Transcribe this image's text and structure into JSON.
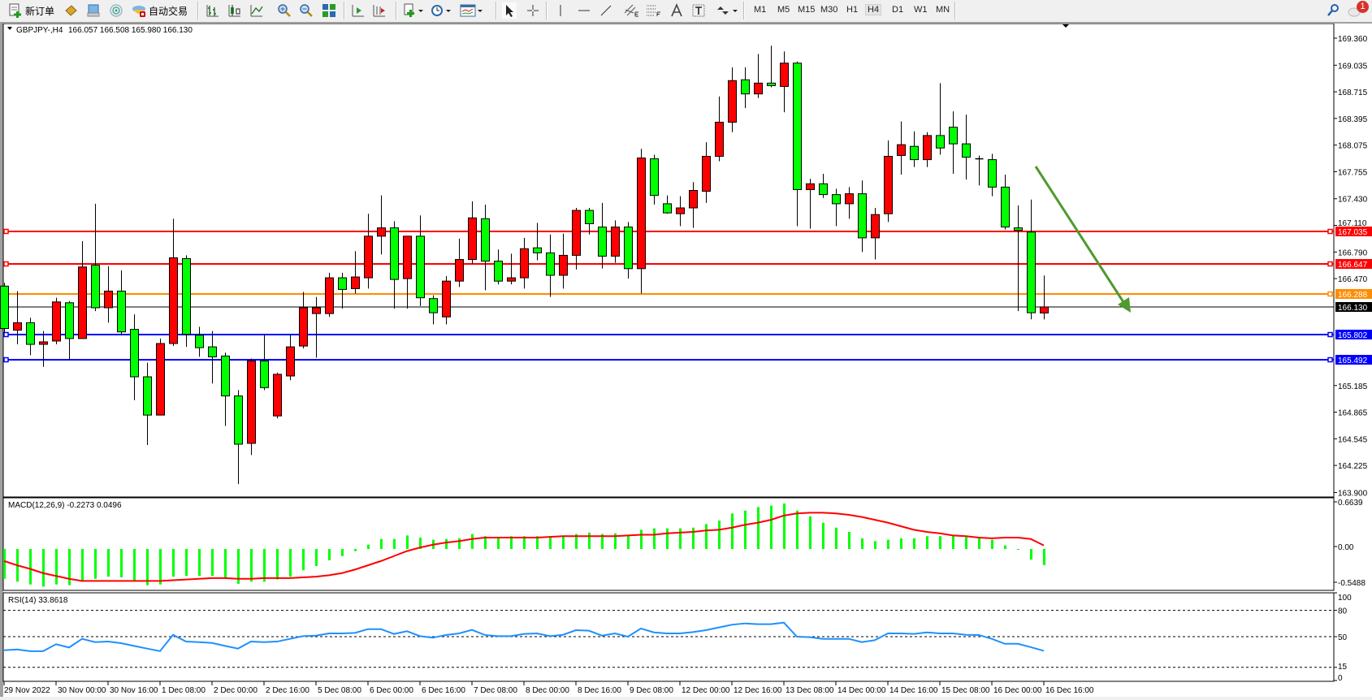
{
  "toolbar": {
    "new_order_label": "新订单",
    "auto_trading_label": "自动交易",
    "timeframes": [
      "M1",
      "M5",
      "M15",
      "M30",
      "H1",
      "H4",
      "D1",
      "W1",
      "MN"
    ],
    "active_timeframe": "H4",
    "notification_count": "1"
  },
  "header": {
    "symbol_info": "GBPJPY-,H4",
    "ohlc": "166.057 166.508 165.980 166.130"
  },
  "colors": {
    "up_candle": "#ff0000",
    "down_candle": "#00ff00",
    "macd_histogram": "#00ff00",
    "macd_signal": "#ff0000",
    "rsi_line": "#1e90ff",
    "arrow": "#4f9a2f"
  },
  "chart_data": [
    {
      "type": "candlestick",
      "title": "GBPJPY-,H4",
      "ylim": [
        163.9,
        169.36
      ],
      "price_ticks": [
        "169.360",
        "169.035",
        "168.715",
        "168.395",
        "168.075",
        "167.755",
        "167.430",
        "167.110",
        "166.790",
        "166.470",
        "165.185",
        "164.865",
        "164.545",
        "164.225",
        "163.900"
      ],
      "time_labels": [
        "29 Nov 2022",
        "30 Nov 00:00",
        "30 Nov 16:00",
        "1 Dec 08:00",
        "2 Dec 00:00",
        "2 Dec 16:00",
        "5 Dec 08:00",
        "6 Dec 00:00",
        "6 Dec 16:00",
        "7 Dec 08:00",
        "8 Dec 00:00",
        "8 Dec 16:00",
        "9 Dec 08:00",
        "12 Dec 00:00",
        "12 Dec 16:00",
        "13 Dec 08:00",
        "14 Dec 00:00",
        "14 Dec 16:00",
        "15 Dec 08:00",
        "16 Dec 00:00",
        "16 Dec 16:00"
      ],
      "ohlc_fields": [
        "open",
        "high",
        "low",
        "close"
      ],
      "candles": [
        [
          166.38,
          166.42,
          165.82,
          165.87
        ],
        [
          165.85,
          166.32,
          165.68,
          165.94
        ],
        [
          165.94,
          166.0,
          165.55,
          165.68
        ],
        [
          165.68,
          165.84,
          165.41,
          165.71
        ],
        [
          165.72,
          166.24,
          165.68,
          166.19
        ],
        [
          166.18,
          166.2,
          165.49,
          165.75
        ],
        [
          165.75,
          166.92,
          165.75,
          166.61
        ],
        [
          166.63,
          167.37,
          166.08,
          166.12
        ],
        [
          166.12,
          166.62,
          165.94,
          166.32
        ],
        [
          166.32,
          166.57,
          165.8,
          165.83
        ],
        [
          165.86,
          166.04,
          165.01,
          165.29
        ],
        [
          165.29,
          165.46,
          164.47,
          164.83
        ],
        [
          164.83,
          165.75,
          164.83,
          165.69
        ],
        [
          165.69,
          167.19,
          165.66,
          166.72
        ],
        [
          166.71,
          166.75,
          165.65,
          165.8
        ],
        [
          165.79,
          165.89,
          165.53,
          165.64
        ],
        [
          165.65,
          165.84,
          165.21,
          165.53
        ],
        [
          165.54,
          165.58,
          164.7,
          165.06
        ],
        [
          165.06,
          165.13,
          164.0,
          164.48
        ],
        [
          164.49,
          165.51,
          164.35,
          165.48
        ],
        [
          165.48,
          165.8,
          165.13,
          165.16
        ],
        [
          164.82,
          165.34,
          164.79,
          165.32
        ],
        [
          165.3,
          165.8,
          165.25,
          165.65
        ],
        [
          165.66,
          166.31,
          165.63,
          166.12
        ],
        [
          166.05,
          166.25,
          165.52,
          166.12
        ],
        [
          166.05,
          166.54,
          166.01,
          166.48
        ],
        [
          166.48,
          166.54,
          166.11,
          166.34
        ],
        [
          166.35,
          166.8,
          166.29,
          166.49
        ],
        [
          166.48,
          167.25,
          166.35,
          166.98
        ],
        [
          166.98,
          167.47,
          166.76,
          167.08
        ],
        [
          167.08,
          167.16,
          166.11,
          166.46
        ],
        [
          166.47,
          166.98,
          166.11,
          166.98
        ],
        [
          166.98,
          167.23,
          166.14,
          166.24
        ],
        [
          166.23,
          166.27,
          165.92,
          166.06
        ],
        [
          166.01,
          166.5,
          165.92,
          166.44
        ],
        [
          166.44,
          166.95,
          166.37,
          166.7
        ],
        [
          166.7,
          167.4,
          166.65,
          167.2
        ],
        [
          167.19,
          167.36,
          166.33,
          166.68
        ],
        [
          166.68,
          166.82,
          166.4,
          166.44
        ],
        [
          166.44,
          166.77,
          166.4,
          166.48
        ],
        [
          166.48,
          166.96,
          166.35,
          166.83
        ],
        [
          166.84,
          167.14,
          166.69,
          166.78
        ],
        [
          166.78,
          167.0,
          166.25,
          166.51
        ],
        [
          166.51,
          167.01,
          166.35,
          166.75
        ],
        [
          166.75,
          167.32,
          166.58,
          167.29
        ],
        [
          167.29,
          167.32,
          167.0,
          167.13
        ],
        [
          167.09,
          167.38,
          166.59,
          166.74
        ],
        [
          166.74,
          167.17,
          166.66,
          167.09
        ],
        [
          167.09,
          167.15,
          166.47,
          166.59
        ],
        [
          166.59,
          168.03,
          166.29,
          167.92
        ],
        [
          167.91,
          167.96,
          167.36,
          167.47
        ],
        [
          167.37,
          167.47,
          167.25,
          167.26
        ],
        [
          167.25,
          167.46,
          167.1,
          167.32
        ],
        [
          167.32,
          167.63,
          167.08,
          167.53
        ],
        [
          167.52,
          168.11,
          167.38,
          167.94
        ],
        [
          167.94,
          168.66,
          167.88,
          168.35
        ],
        [
          168.35,
          169.01,
          168.23,
          168.85
        ],
        [
          168.86,
          169.01,
          168.52,
          168.69
        ],
        [
          168.69,
          169.17,
          168.64,
          168.82
        ],
        [
          168.82,
          169.27,
          168.77,
          168.79
        ],
        [
          168.78,
          169.2,
          168.47,
          169.06
        ],
        [
          169.06,
          169.08,
          167.1,
          167.54
        ],
        [
          167.54,
          167.67,
          167.07,
          167.61
        ],
        [
          167.61,
          167.73,
          167.44,
          167.48
        ],
        [
          167.48,
          167.55,
          167.1,
          167.37
        ],
        [
          167.37,
          167.57,
          167.19,
          167.49
        ],
        [
          167.49,
          167.65,
          166.79,
          166.96
        ],
        [
          166.96,
          167.32,
          166.7,
          167.24
        ],
        [
          167.25,
          168.13,
          167.15,
          167.94
        ],
        [
          167.95,
          168.36,
          167.72,
          168.08
        ],
        [
          168.06,
          168.24,
          167.81,
          167.9
        ],
        [
          167.9,
          168.23,
          167.81,
          168.19
        ],
        [
          168.19,
          168.82,
          167.96,
          168.04
        ],
        [
          168.29,
          168.48,
          167.73,
          168.09
        ],
        [
          168.09,
          168.44,
          167.66,
          167.93
        ],
        [
          167.91,
          167.95,
          167.59,
          167.91
        ],
        [
          167.9,
          167.97,
          167.46,
          167.57
        ],
        [
          167.57,
          167.72,
          167.06,
          167.09
        ],
        [
          167.08,
          167.35,
          166.08,
          167.05
        ],
        [
          167.03,
          167.42,
          165.98,
          166.06
        ],
        [
          166.057,
          166.508,
          165.98,
          166.13
        ]
      ],
      "horizontal_lines": [
        {
          "label": "167.035",
          "value": 167.035,
          "color": "#ff0000"
        },
        {
          "label": "166.647",
          "value": 166.647,
          "color": "#ff0000"
        },
        {
          "label": "166.288",
          "value": 166.288,
          "color": "#ff8c00"
        },
        {
          "label": "165.802",
          "value": 165.802,
          "color": "#0000ff"
        },
        {
          "label": "165.492",
          "value": 165.492,
          "color": "#0000ff"
        }
      ],
      "current_price": {
        "label": "166.130",
        "value": 166.13
      }
    },
    {
      "type": "bar+line",
      "title": "MACD(12,26,9) -0.2273 0.0496",
      "axis_labels": [
        "0.6639",
        "0.00",
        "-0.5488"
      ],
      "ylim": [
        -0.5488,
        0.6639
      ],
      "histogram": [
        -0.42,
        -0.46,
        -0.5,
        -0.53,
        -0.5,
        -0.51,
        -0.46,
        -0.42,
        -0.39,
        -0.4,
        -0.45,
        -0.51,
        -0.5,
        -0.39,
        -0.38,
        -0.38,
        -0.38,
        -0.41,
        -0.49,
        -0.46,
        -0.46,
        -0.43,
        -0.39,
        -0.3,
        -0.24,
        -0.16,
        -0.1,
        -0.03,
        0.06,
        0.14,
        0.14,
        0.19,
        0.16,
        0.13,
        0.14,
        0.15,
        0.21,
        0.18,
        0.16,
        0.18,
        0.18,
        0.18,
        0.18,
        0.18,
        0.21,
        0.23,
        0.21,
        0.22,
        0.19,
        0.27,
        0.29,
        0.29,
        0.29,
        0.3,
        0.35,
        0.4,
        0.5,
        0.54,
        0.59,
        0.61,
        0.64,
        0.54,
        0.46,
        0.37,
        0.3,
        0.24,
        0.15,
        0.11,
        0.13,
        0.15,
        0.15,
        0.18,
        0.18,
        0.18,
        0.17,
        0.15,
        0.13,
        0.05,
        -0.01,
        -0.15,
        -0.2273
      ],
      "signal": [
        -0.17,
        -0.23,
        -0.28,
        -0.34,
        -0.38,
        -0.42,
        -0.45,
        -0.45,
        -0.45,
        -0.45,
        -0.45,
        -0.45,
        -0.45,
        -0.44,
        -0.43,
        -0.42,
        -0.41,
        -0.41,
        -0.42,
        -0.42,
        -0.41,
        -0.41,
        -0.41,
        -0.4,
        -0.39,
        -0.37,
        -0.34,
        -0.29,
        -0.23,
        -0.17,
        -0.1,
        -0.03,
        0.02,
        0.06,
        0.09,
        0.11,
        0.14,
        0.16,
        0.16,
        0.16,
        0.16,
        0.16,
        0.17,
        0.18,
        0.18,
        0.18,
        0.18,
        0.18,
        0.19,
        0.2,
        0.2,
        0.22,
        0.23,
        0.24,
        0.26,
        0.27,
        0.3,
        0.34,
        0.37,
        0.41,
        0.47,
        0.5,
        0.51,
        0.51,
        0.5,
        0.48,
        0.45,
        0.41,
        0.37,
        0.32,
        0.27,
        0.24,
        0.22,
        0.19,
        0.18,
        0.16,
        0.15,
        0.16,
        0.16,
        0.14,
        0.0496
      ]
    },
    {
      "type": "line",
      "title": "RSI(14) 33.8618",
      "axis_labels": [
        "100",
        "80",
        "50",
        "15",
        "0"
      ],
      "levels": [
        80,
        50,
        15
      ],
      "ylim": [
        0,
        100
      ],
      "values": [
        34.5,
        35.4,
        33.5,
        33.5,
        41.4,
        37.6,
        47.5,
        43.8,
        44.4,
        42.6,
        39.5,
        36.4,
        33.5,
        52.1,
        44.4,
        43.8,
        42.8,
        39.5,
        36.4,
        44.4,
        43.8,
        44.4,
        47.5,
        50.6,
        51.2,
        53.7,
        53.7,
        54.3,
        58.6,
        58.6,
        53.1,
        56.2,
        50.6,
        48.8,
        51.9,
        53.7,
        57.7,
        51.9,
        50.6,
        50.6,
        53.1,
        53.7,
        50.6,
        52.1,
        57.4,
        56.8,
        51.2,
        53.7,
        50.0,
        59.3,
        54.9,
        53.7,
        53.7,
        55.2,
        57.4,
        60.5,
        63.6,
        65.1,
        64.2,
        64.2,
        66.0,
        50.0,
        49.4,
        47.5,
        47.5,
        47.5,
        43.8,
        46.0,
        53.7,
        53.7,
        53.1,
        54.9,
        53.7,
        53.7,
        52.1,
        51.9,
        47.5,
        41.9,
        41.9,
        38.0,
        33.8618
      ]
    }
  ]
}
